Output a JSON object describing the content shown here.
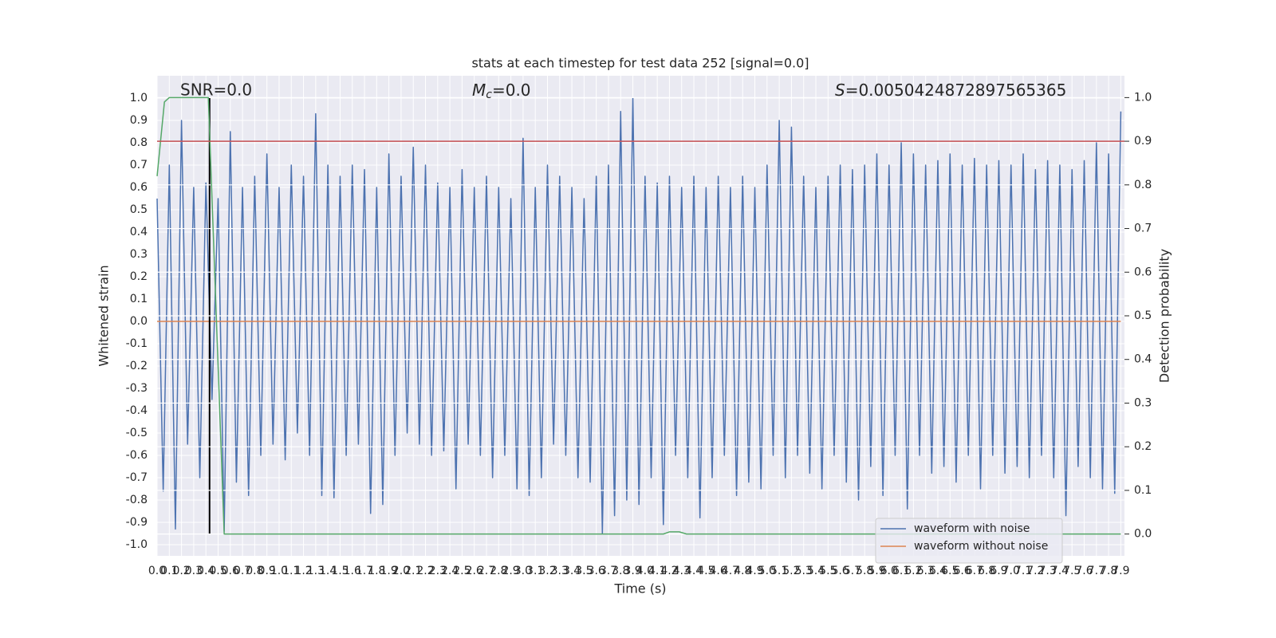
{
  "chart_data": {
    "type": "line",
    "title": "stats at each timestep for test data 252 [signal=0.0]",
    "xlabel": "Time (s)",
    "ylabel": "Whitened strain",
    "y2label": "Detection probability",
    "annotations": [
      {
        "text": "SNR=0.0"
      },
      {
        "symbol": "M",
        "subscript": "c",
        "text": "=0.0"
      },
      {
        "symbol": "S",
        "text": "=0.0050424872897565365"
      }
    ],
    "xlim": [
      0,
      7.93
    ],
    "ylim": [
      -1.05,
      1.1
    ],
    "y2lim": [
      -0.05,
      1.05
    ],
    "xticks": [
      {
        "value": 0,
        "label": "0.0"
      },
      0.1,
      0.2,
      0.3,
      0.4,
      0.5,
      0.6,
      0.7,
      0.8,
      0.9,
      {
        "value": 1,
        "label": "1.0"
      },
      1.1,
      1.2,
      1.3,
      1.4,
      1.5,
      1.6,
      1.7,
      1.8,
      1.9,
      {
        "value": 2,
        "label": "2.0"
      },
      2.1,
      2.2,
      2.3,
      2.4,
      2.5,
      2.6,
      2.7,
      2.8,
      2.9,
      {
        "value": 3,
        "label": "3.0"
      },
      3.1,
      3.2,
      3.3,
      3.4,
      3.5,
      3.6,
      3.7,
      3.8,
      3.9,
      {
        "value": 4,
        "label": "4.0"
      },
      4.1,
      4.2,
      4.3,
      4.4,
      4.5,
      4.6,
      4.7,
      4.8,
      4.9,
      {
        "value": 5,
        "label": "5.0"
      },
      5.1,
      5.2,
      5.3,
      5.4,
      5.5,
      5.6,
      5.7,
      5.8,
      5.9,
      {
        "value": 6,
        "label": "6.0"
      },
      6.1,
      6.2,
      6.3,
      6.4,
      6.5,
      6.6,
      6.7,
      6.8,
      6.9,
      {
        "value": 7,
        "label": "7.0"
      },
      7.1,
      7.2,
      7.3,
      7.4,
      7.5,
      7.6,
      7.7,
      7.8,
      7.9
    ],
    "yticks": [
      {
        "value": -1,
        "label": "-1.0"
      },
      -0.9,
      -0.8,
      -0.7,
      -0.6,
      -0.5,
      -0.4,
      -0.3,
      -0.2,
      -0.1,
      {
        "value": 0,
        "label": "0.0"
      },
      0.1,
      0.2,
      0.3,
      0.4,
      0.5,
      0.6,
      0.7,
      0.8,
      0.9,
      {
        "value": 1,
        "label": "1.0"
      }
    ],
    "y2ticks": [
      {
        "value": 0,
        "label": "0.0"
      },
      0.1,
      0.2,
      0.3,
      0.4,
      0.5,
      0.6,
      0.7,
      0.8,
      0.9,
      {
        "value": 1,
        "label": "1.0"
      }
    ],
    "grid": true,
    "legend": "lower right",
    "series": [
      {
        "name": "waveform with noise",
        "color": "#4c72b0",
        "x": [
          0,
          0.05,
          0.1,
          0.15,
          0.2,
          0.25,
          0.3,
          0.35,
          0.4,
          0.45,
          0.5,
          0.55,
          0.6,
          0.65,
          0.7,
          0.75,
          0.8,
          0.85,
          0.9,
          0.95,
          1,
          1.05,
          1.1,
          1.15,
          1.2,
          1.25,
          1.3,
          1.35,
          1.4,
          1.45,
          1.5,
          1.55,
          1.6,
          1.65,
          1.7,
          1.75,
          1.8,
          1.85,
          1.9,
          1.95,
          2,
          2.05,
          2.1,
          2.15,
          2.2,
          2.25,
          2.3,
          2.35,
          2.4,
          2.45,
          2.5,
          2.55,
          2.6,
          2.65,
          2.7,
          2.75,
          2.8,
          2.85,
          2.9,
          2.95,
          3,
          3.05,
          3.1,
          3.15,
          3.2,
          3.25,
          3.3,
          3.35,
          3.4,
          3.45,
          3.5,
          3.55,
          3.6,
          3.65,
          3.7,
          3.75,
          3.8,
          3.85,
          3.9,
          3.95,
          4,
          4.05,
          4.1,
          4.15,
          4.2,
          4.25,
          4.3,
          4.35,
          4.4,
          4.45,
          4.5,
          4.55,
          4.6,
          4.65,
          4.7,
          4.75,
          4.8,
          4.85,
          4.9,
          4.95,
          5,
          5.05,
          5.1,
          5.15,
          5.2,
          5.25,
          5.3,
          5.35,
          5.4,
          5.45,
          5.5,
          5.55,
          5.6,
          5.65,
          5.7,
          5.75,
          5.8,
          5.85,
          5.9,
          5.95,
          6,
          6.05,
          6.1,
          6.15,
          6.2,
          6.25,
          6.3,
          6.35,
          6.4,
          6.45,
          6.5,
          6.55,
          6.6,
          6.65,
          6.7,
          6.75,
          6.8,
          6.85,
          6.9,
          6.95,
          7,
          7.05,
          7.1,
          7.15,
          7.2,
          7.25,
          7.3,
          7.35,
          7.4,
          7.45,
          7.5,
          7.55,
          7.6,
          7.65,
          7.7,
          7.75,
          7.8,
          7.85,
          7.9
        ],
        "values": [
          0.55,
          -0.76,
          0.7,
          -0.93,
          0.9,
          -0.55,
          0.6,
          -0.7,
          0.62,
          -0.35,
          0.55,
          -0.94,
          0.85,
          -0.72,
          0.6,
          -0.78,
          0.65,
          -0.6,
          0.75,
          -0.55,
          0.6,
          -0.62,
          0.7,
          -0.5,
          0.65,
          -0.6,
          0.93,
          -0.78,
          0.7,
          -0.79,
          0.65,
          -0.6,
          0.7,
          -0.55,
          0.68,
          -0.86,
          0.6,
          -0.82,
          0.75,
          -0.6,
          0.65,
          -0.5,
          0.78,
          -0.55,
          0.7,
          -0.6,
          0.62,
          -0.58,
          0.6,
          -0.75,
          0.68,
          -0.55,
          0.6,
          -0.6,
          0.65,
          -0.7,
          0.6,
          -0.6,
          0.55,
          -0.75,
          0.82,
          -0.78,
          0.6,
          -0.7,
          0.7,
          -0.55,
          0.65,
          -0.6,
          0.6,
          -0.7,
          0.55,
          -0.72,
          0.65,
          -0.95,
          0.7,
          -0.87,
          0.94,
          -0.8,
          1.0,
          -0.82,
          0.65,
          -0.7,
          0.62,
          -0.91,
          0.65,
          -0.6,
          0.6,
          -0.7,
          0.65,
          -0.88,
          0.6,
          -0.7,
          0.65,
          -0.6,
          0.6,
          -0.78,
          0.65,
          -0.72,
          0.6,
          -0.75,
          0.7,
          -0.6,
          0.9,
          -0.7,
          0.87,
          -0.6,
          0.65,
          -0.68,
          0.6,
          -0.75,
          0.65,
          -0.6,
          0.7,
          -0.72,
          0.68,
          -0.8,
          0.7,
          -0.65,
          0.75,
          -0.78,
          0.7,
          -0.6,
          0.8,
          -0.84,
          0.75,
          -0.6,
          0.7,
          -0.68,
          0.72,
          -0.65,
          0.75,
          -0.72,
          0.7,
          -0.6,
          0.73,
          -0.75,
          0.7,
          -0.6,
          0.72,
          -0.68,
          0.7,
          -0.65,
          0.75,
          -0.7,
          0.68,
          -0.6,
          0.72,
          -0.7,
          0.7,
          -0.87,
          0.68,
          -0.65,
          0.72,
          -0.7,
          0.8,
          -0.75,
          0.75,
          -0.77,
          0.94
        ]
      },
      {
        "name": "waveform without noise",
        "color": "#dd8452",
        "x": [
          0,
          7.9
        ],
        "values": [
          0,
          0
        ]
      },
      {
        "color": "#55a868",
        "axis": "y2",
        "x": [
          0,
          0.06,
          0.1,
          0.42,
          0.55,
          4.15,
          4.2,
          4.28,
          4.34,
          7.9
        ],
        "values": [
          0.82,
          0.99,
          1.0,
          1.0,
          0.0,
          0.0,
          0.005,
          0.005,
          0.0,
          0.0
        ]
      }
    ],
    "hlines": [
      {
        "value": 0.9,
        "axis": "y2",
        "color": "#c44e52"
      }
    ],
    "vlines": [
      {
        "value": 0.43,
        "color": "#000000"
      }
    ]
  }
}
